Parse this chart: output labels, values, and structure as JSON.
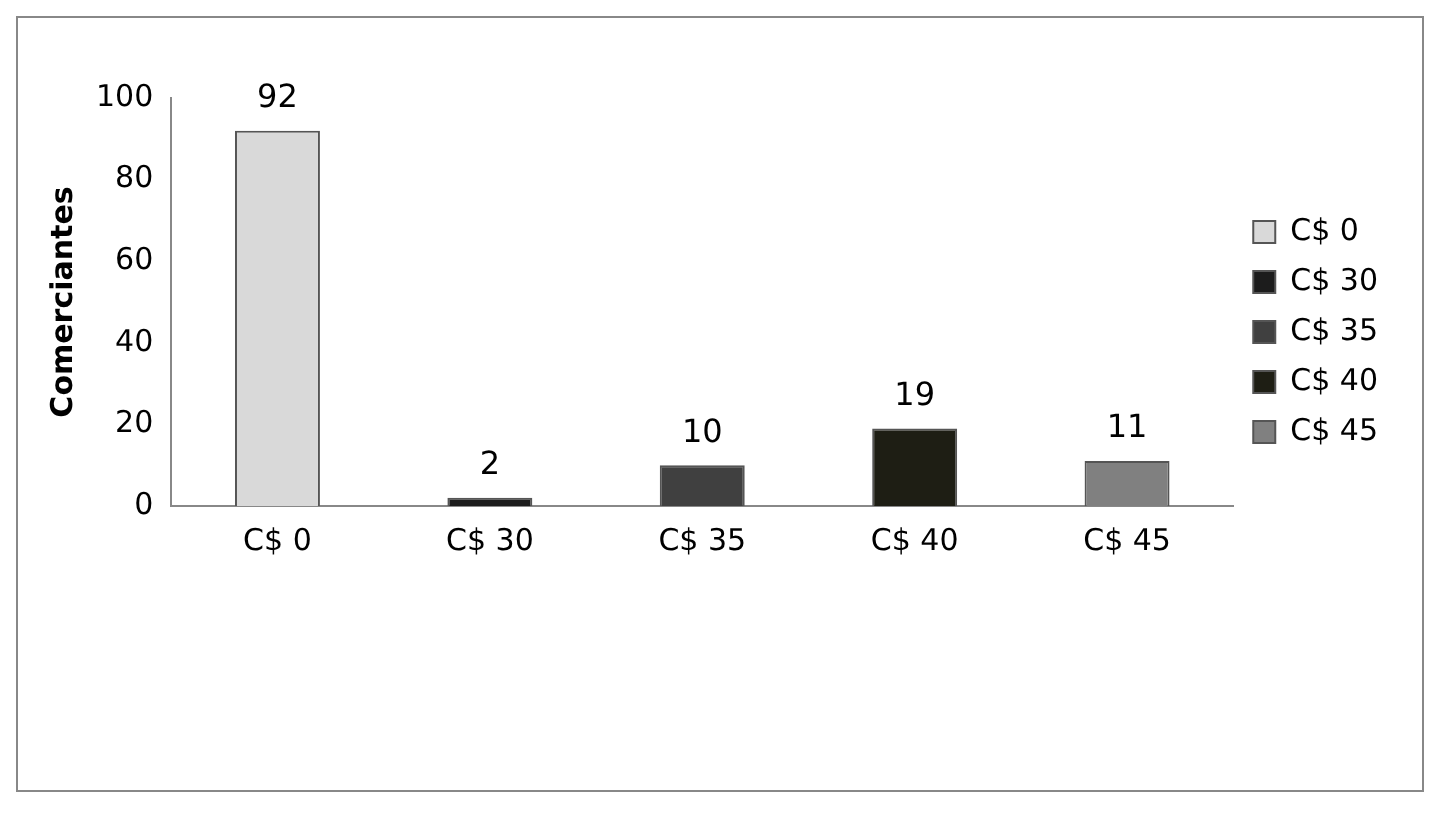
{
  "chart_data": {
    "type": "bar",
    "ylabel": "Comerciantes",
    "categories": [
      "C$ 0",
      "C$ 30",
      "C$ 35",
      "C$ 40",
      "C$ 45"
    ],
    "series": [
      {
        "name": "C$ 0",
        "color": "#d9d9d9",
        "values": [
          92,
          null,
          null,
          null,
          null
        ]
      },
      {
        "name": "C$ 30",
        "color": "#1c1c1c",
        "values": [
          null,
          2,
          null,
          null,
          null
        ]
      },
      {
        "name": "C$ 35",
        "color": "#404040",
        "values": [
          null,
          null,
          10,
          null,
          null
        ]
      },
      {
        "name": "C$ 40",
        "color": "#1e1e14",
        "values": [
          null,
          null,
          null,
          19,
          null
        ]
      },
      {
        "name": "C$ 45",
        "color": "#808080",
        "values": [
          null,
          null,
          null,
          null,
          11
        ]
      }
    ],
    "ylim": [
      0,
      100
    ],
    "yticks": [
      0,
      20,
      40,
      60,
      80,
      100
    ],
    "grid": false,
    "legend": "right",
    "data_labels": true
  }
}
